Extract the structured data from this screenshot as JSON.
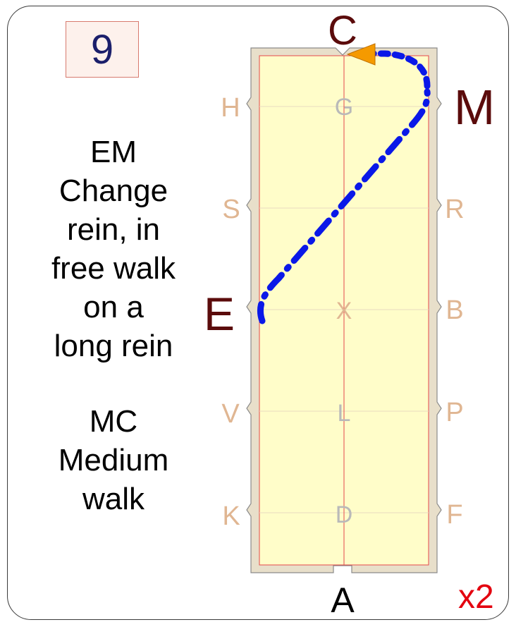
{
  "test": {
    "movement_number": "9",
    "instructions": [
      {
        "lines": [
          "EM",
          "Change",
          "rein, in",
          "free walk",
          "on a",
          "long rein"
        ]
      },
      {
        "lines": [
          "MC",
          "Medium",
          "walk"
        ]
      }
    ],
    "repeat_label": "x2"
  },
  "arena": {
    "markers_left": [
      "H",
      "S",
      "E",
      "V",
      "K"
    ],
    "markers_right": [
      "M",
      "R",
      "B",
      "P",
      "F"
    ],
    "centerline_letters": [
      "G",
      "X",
      "L",
      "D"
    ],
    "end_letters": {
      "top": "C",
      "bottom": "A"
    },
    "highlighted_markers": [
      "C",
      "M",
      "E"
    ]
  },
  "colors": {
    "arena_fill": "#fffdc9",
    "arena_border": "#e8dfca",
    "centerline": "#e6484b",
    "faded_marker": "#e0b692",
    "highlighted_marker": "#5b0b0b",
    "path": "#0a18e8",
    "arrow": "#f59a00",
    "repeat": "#e3000f"
  }
}
